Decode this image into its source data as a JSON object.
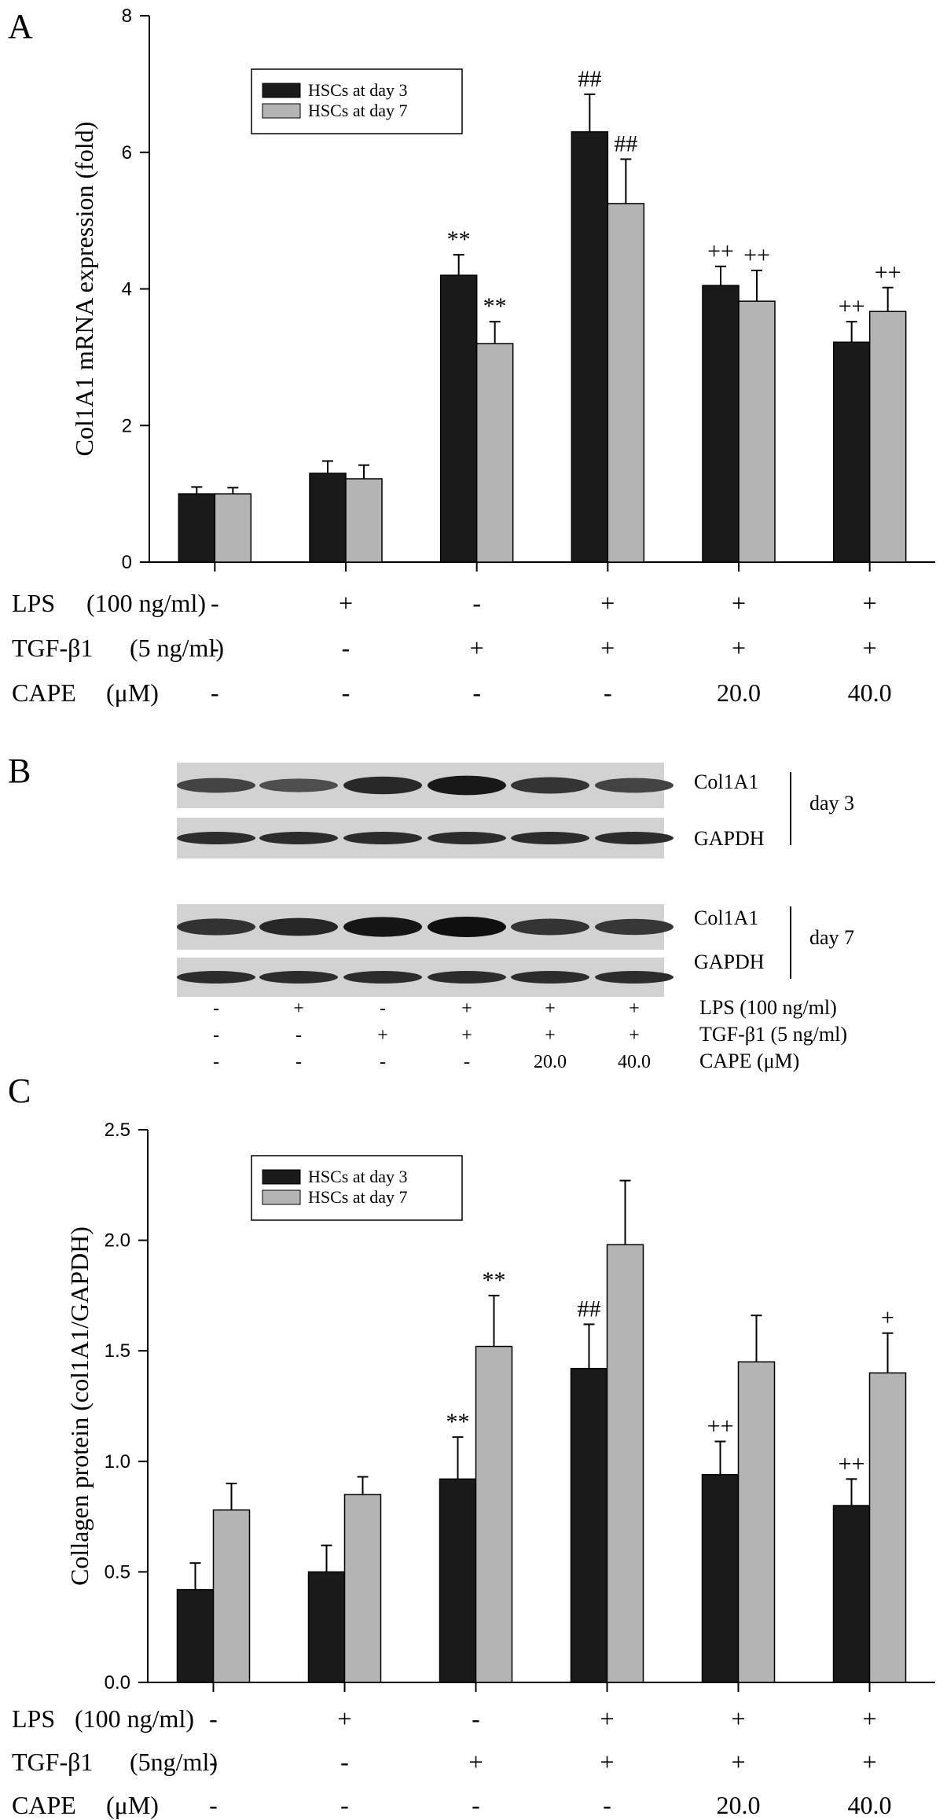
{
  "colors": {
    "day3": "#1a1a1a",
    "day7": "#b4b4b4",
    "axis": "#000000"
  },
  "panelA": {
    "letter": "A",
    "chart_data": {
      "type": "bar",
      "ylabel": "Col1A1 mRNA expression (fold)",
      "ylim": [
        0,
        8
      ],
      "yticks": [
        0,
        2,
        4,
        6,
        8
      ],
      "ytick_labels": [
        "0",
        "2",
        "4",
        "6",
        "8"
      ],
      "legend": [
        "HSCs at day 3",
        "HSCs at day 7"
      ],
      "legend_position": "top-left",
      "series": [
        {
          "name": "HSCs at day 3",
          "values": [
            1.0,
            1.3,
            4.2,
            6.3,
            4.05,
            3.22
          ],
          "errors": [
            0.1,
            0.18,
            0.3,
            0.55,
            0.28,
            0.3
          ],
          "marks": [
            "",
            "",
            "**",
            "##",
            "++",
            "++"
          ]
        },
        {
          "name": "HSCs at day 7",
          "values": [
            1.0,
            1.22,
            3.2,
            5.25,
            3.82,
            3.67
          ],
          "errors": [
            0.09,
            0.2,
            0.32,
            0.65,
            0.45,
            0.35
          ],
          "marks": [
            "",
            "",
            "**",
            "##",
            "++",
            "++"
          ]
        }
      ],
      "conditions": [
        {
          "label": "LPS",
          "unit": "(100 ng/ml)",
          "values": [
            "-",
            "+",
            "-",
            "+",
            "+",
            "+"
          ]
        },
        {
          "label": "TGF-β1",
          "unit": "(5 ng/ml)",
          "values": [
            "-",
            "-",
            "+",
            "+",
            "+",
            "+"
          ]
        },
        {
          "label": "CAPE",
          "unit": "(μM)",
          "values": [
            "-",
            "-",
            "-",
            "-",
            "20.0",
            "40.0"
          ]
        }
      ]
    }
  },
  "panelB": {
    "letter": "B",
    "blot_labels": {
      "col1a1": "Col1A1",
      "gapdh": "GAPDH",
      "day3": "day 3",
      "day7": "day 7"
    },
    "band_intensity_day3_col1a1": [
      0.55,
      0.45,
      0.78,
      0.92,
      0.68,
      0.55
    ],
    "band_intensity_day7_col1a1": [
      0.7,
      0.8,
      0.95,
      1.0,
      0.68,
      0.65
    ],
    "conditions": [
      {
        "label": "LPS (100 ng/ml)",
        "values": [
          "-",
          "+",
          "-",
          "+",
          "+",
          "+"
        ]
      },
      {
        "label": "TGF-β1 (5 ng/ml)",
        "values": [
          "-",
          "-",
          "+",
          "+",
          "+",
          "+"
        ]
      },
      {
        "label": "CAPE (μM)",
        "values": [
          "-",
          "-",
          "-",
          "-",
          "20.0",
          "40.0"
        ]
      }
    ]
  },
  "panelC": {
    "letter": "C",
    "chart_data": {
      "type": "bar",
      "ylabel": "Collagen protein (col1A1/GAPDH)",
      "ylim": [
        0,
        2.5
      ],
      "yticks": [
        0,
        0.5,
        1.0,
        1.5,
        2.0,
        2.5
      ],
      "ytick_labels": [
        "0.0",
        "0.5",
        "1.0",
        "1.5",
        "2.0",
        "2.5"
      ],
      "legend": [
        "HSCs at day 3",
        "HSCs at day 7"
      ],
      "legend_position": "top-left",
      "series": [
        {
          "name": "HSCs at day 3",
          "values": [
            0.42,
            0.5,
            0.92,
            1.42,
            0.94,
            0.8
          ],
          "errors": [
            0.12,
            0.12,
            0.19,
            0.2,
            0.15,
            0.12
          ],
          "marks": [
            "",
            "",
            "**",
            "##",
            "++",
            "++"
          ]
        },
        {
          "name": "HSCs at day 7",
          "values": [
            0.78,
            0.85,
            1.52,
            1.98,
            1.45,
            1.4
          ],
          "errors": [
            0.12,
            0.08,
            0.23,
            0.29,
            0.21,
            0.18
          ],
          "marks": [
            "",
            "",
            "**",
            "",
            "",
            "+"
          ]
        }
      ],
      "conditions": [
        {
          "label": "LPS",
          "unit": "(100 ng/ml)",
          "values": [
            "-",
            "+",
            "-",
            "+",
            "+",
            "+"
          ]
        },
        {
          "label": "TGF-β1",
          "unit": "(5ng/ml)",
          "values": [
            "-",
            "-",
            "+",
            "+",
            "+",
            "+"
          ]
        },
        {
          "label": "CAPE",
          "unit": "(μM)",
          "values": [
            "-",
            "-",
            "-",
            "-",
            "20.0",
            "40.0"
          ]
        }
      ]
    }
  }
}
